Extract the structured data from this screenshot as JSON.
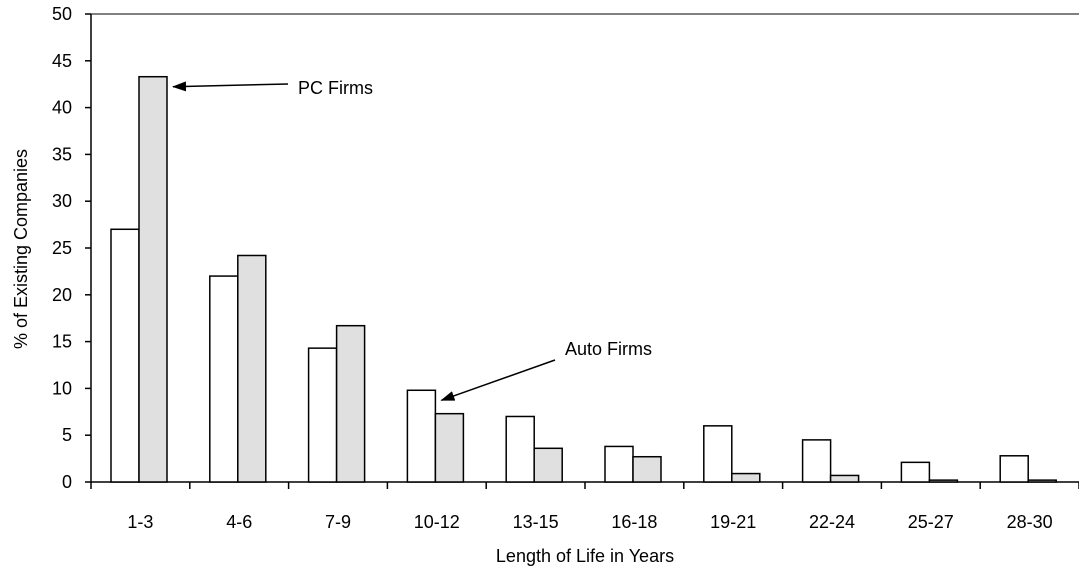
{
  "chart_data": {
    "type": "bar",
    "title": "",
    "xlabel": "Length of Life in Years",
    "ylabel": "% of Existing Companies",
    "ylim": [
      0,
      50
    ],
    "yticks": [
      0,
      5,
      10,
      15,
      20,
      25,
      30,
      35,
      40,
      45,
      50
    ],
    "categories": [
      "1-3",
      "4-6",
      "7-9",
      "10-12",
      "13-15",
      "16-18",
      "19-21",
      "22-24",
      "25-27",
      "28-30"
    ],
    "series": [
      {
        "name": "Auto Firms",
        "fill": "#ffffff",
        "values": [
          27,
          22,
          14.3,
          9.8,
          7,
          3.8,
          6,
          4.5,
          2.1,
          2.8
        ]
      },
      {
        "name": "PC Firms",
        "fill": "#e0e0e0",
        "values": [
          43.3,
          24.2,
          16.7,
          7.3,
          3.6,
          2.7,
          0.9,
          0.7,
          0.2,
          0.2
        ]
      }
    ],
    "grid": false,
    "legend": "none",
    "annotations": [
      {
        "text": "PC Firms",
        "target_series": 1,
        "target_category": 0
      },
      {
        "text": "Auto Firms",
        "target_series": 0,
        "target_category": 3
      }
    ]
  }
}
